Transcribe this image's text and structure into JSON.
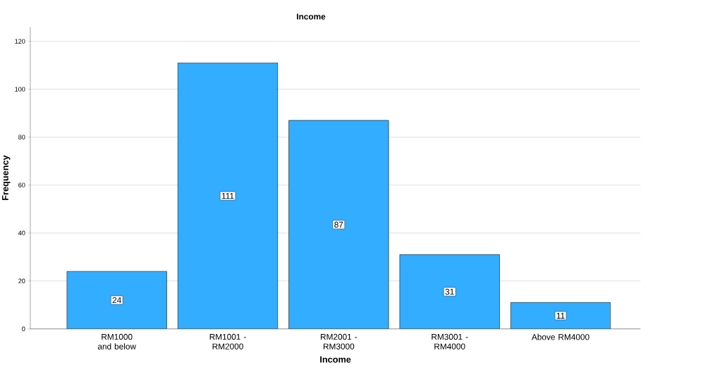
{
  "chart_data": {
    "type": "bar",
    "title": "Income",
    "xlabel": "Income",
    "ylabel": "Frequency",
    "categories": [
      "RM1000 and below",
      "RM1001 - RM2000",
      "RM2001 - RM3000",
      "RM3001 - RM4000",
      "Above RM4000"
    ],
    "values": [
      24,
      111,
      87,
      31,
      11
    ],
    "color": "#33adff",
    "ylim": [
      0,
      126
    ],
    "yticks": [
      0,
      20,
      40,
      60,
      80,
      100,
      120
    ],
    "grid": "y",
    "data_labels": true
  }
}
